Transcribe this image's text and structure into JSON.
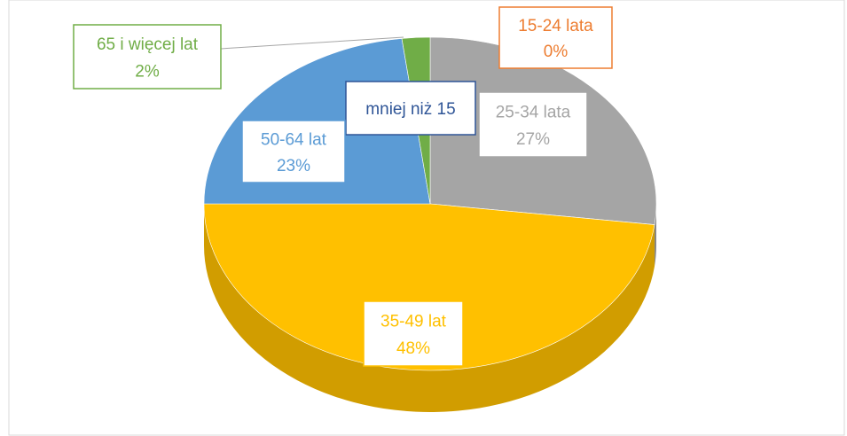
{
  "chart_data": {
    "type": "pie",
    "categories": [
      "mniej niż 15",
      "15-24 lata",
      "25-34 lata",
      "35-49 lat",
      "50-64 lat",
      "65 i więcej lat"
    ],
    "values": [
      0,
      0,
      27,
      48,
      23,
      2
    ],
    "value_labels": [
      null,
      "0%",
      "27%",
      "48%",
      "23%",
      "2%"
    ],
    "colors": [
      "#4472c4",
      "#ed7d31",
      "#a5a5a5",
      "#ffc000",
      "#5b9bd5",
      "#70ad47"
    ]
  }
}
